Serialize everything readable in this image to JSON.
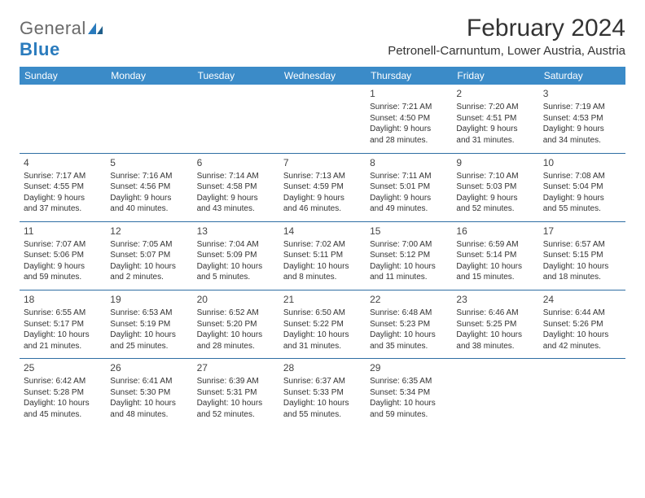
{
  "logo": {
    "word1": "General",
    "word2": "Blue"
  },
  "header": {
    "month_title": "February 2024",
    "location": "Petronell-Carnuntum, Lower Austria, Austria"
  },
  "style": {
    "header_bg": "#3b8bc8",
    "header_text": "#ffffff",
    "row_divider": "#2f6ea3",
    "body_text": "#333333",
    "logo_gray": "#6a6a6a",
    "logo_blue": "#2a7bbd",
    "page_bg": "#ffffff",
    "month_title_fontsize": 30,
    "location_fontsize": 15,
    "dayhead_fontsize": 12,
    "cell_fontsize": 10
  },
  "day_headers": [
    "Sunday",
    "Monday",
    "Tuesday",
    "Wednesday",
    "Thursday",
    "Friday",
    "Saturday"
  ],
  "weeks": [
    [
      null,
      null,
      null,
      null,
      {
        "n": "1",
        "sr": "Sunrise: 7:21 AM",
        "ss": "Sunset: 4:50 PM",
        "dl1": "Daylight: 9 hours",
        "dl2": "and 28 minutes."
      },
      {
        "n": "2",
        "sr": "Sunrise: 7:20 AM",
        "ss": "Sunset: 4:51 PM",
        "dl1": "Daylight: 9 hours",
        "dl2": "and 31 minutes."
      },
      {
        "n": "3",
        "sr": "Sunrise: 7:19 AM",
        "ss": "Sunset: 4:53 PM",
        "dl1": "Daylight: 9 hours",
        "dl2": "and 34 minutes."
      }
    ],
    [
      {
        "n": "4",
        "sr": "Sunrise: 7:17 AM",
        "ss": "Sunset: 4:55 PM",
        "dl1": "Daylight: 9 hours",
        "dl2": "and 37 minutes."
      },
      {
        "n": "5",
        "sr": "Sunrise: 7:16 AM",
        "ss": "Sunset: 4:56 PM",
        "dl1": "Daylight: 9 hours",
        "dl2": "and 40 minutes."
      },
      {
        "n": "6",
        "sr": "Sunrise: 7:14 AM",
        "ss": "Sunset: 4:58 PM",
        "dl1": "Daylight: 9 hours",
        "dl2": "and 43 minutes."
      },
      {
        "n": "7",
        "sr": "Sunrise: 7:13 AM",
        "ss": "Sunset: 4:59 PM",
        "dl1": "Daylight: 9 hours",
        "dl2": "and 46 minutes."
      },
      {
        "n": "8",
        "sr": "Sunrise: 7:11 AM",
        "ss": "Sunset: 5:01 PM",
        "dl1": "Daylight: 9 hours",
        "dl2": "and 49 minutes."
      },
      {
        "n": "9",
        "sr": "Sunrise: 7:10 AM",
        "ss": "Sunset: 5:03 PM",
        "dl1": "Daylight: 9 hours",
        "dl2": "and 52 minutes."
      },
      {
        "n": "10",
        "sr": "Sunrise: 7:08 AM",
        "ss": "Sunset: 5:04 PM",
        "dl1": "Daylight: 9 hours",
        "dl2": "and 55 minutes."
      }
    ],
    [
      {
        "n": "11",
        "sr": "Sunrise: 7:07 AM",
        "ss": "Sunset: 5:06 PM",
        "dl1": "Daylight: 9 hours",
        "dl2": "and 59 minutes."
      },
      {
        "n": "12",
        "sr": "Sunrise: 7:05 AM",
        "ss": "Sunset: 5:07 PM",
        "dl1": "Daylight: 10 hours",
        "dl2": "and 2 minutes."
      },
      {
        "n": "13",
        "sr": "Sunrise: 7:04 AM",
        "ss": "Sunset: 5:09 PM",
        "dl1": "Daylight: 10 hours",
        "dl2": "and 5 minutes."
      },
      {
        "n": "14",
        "sr": "Sunrise: 7:02 AM",
        "ss": "Sunset: 5:11 PM",
        "dl1": "Daylight: 10 hours",
        "dl2": "and 8 minutes."
      },
      {
        "n": "15",
        "sr": "Sunrise: 7:00 AM",
        "ss": "Sunset: 5:12 PM",
        "dl1": "Daylight: 10 hours",
        "dl2": "and 11 minutes."
      },
      {
        "n": "16",
        "sr": "Sunrise: 6:59 AM",
        "ss": "Sunset: 5:14 PM",
        "dl1": "Daylight: 10 hours",
        "dl2": "and 15 minutes."
      },
      {
        "n": "17",
        "sr": "Sunrise: 6:57 AM",
        "ss": "Sunset: 5:15 PM",
        "dl1": "Daylight: 10 hours",
        "dl2": "and 18 minutes."
      }
    ],
    [
      {
        "n": "18",
        "sr": "Sunrise: 6:55 AM",
        "ss": "Sunset: 5:17 PM",
        "dl1": "Daylight: 10 hours",
        "dl2": "and 21 minutes."
      },
      {
        "n": "19",
        "sr": "Sunrise: 6:53 AM",
        "ss": "Sunset: 5:19 PM",
        "dl1": "Daylight: 10 hours",
        "dl2": "and 25 minutes."
      },
      {
        "n": "20",
        "sr": "Sunrise: 6:52 AM",
        "ss": "Sunset: 5:20 PM",
        "dl1": "Daylight: 10 hours",
        "dl2": "and 28 minutes."
      },
      {
        "n": "21",
        "sr": "Sunrise: 6:50 AM",
        "ss": "Sunset: 5:22 PM",
        "dl1": "Daylight: 10 hours",
        "dl2": "and 31 minutes."
      },
      {
        "n": "22",
        "sr": "Sunrise: 6:48 AM",
        "ss": "Sunset: 5:23 PM",
        "dl1": "Daylight: 10 hours",
        "dl2": "and 35 minutes."
      },
      {
        "n": "23",
        "sr": "Sunrise: 6:46 AM",
        "ss": "Sunset: 5:25 PM",
        "dl1": "Daylight: 10 hours",
        "dl2": "and 38 minutes."
      },
      {
        "n": "24",
        "sr": "Sunrise: 6:44 AM",
        "ss": "Sunset: 5:26 PM",
        "dl1": "Daylight: 10 hours",
        "dl2": "and 42 minutes."
      }
    ],
    [
      {
        "n": "25",
        "sr": "Sunrise: 6:42 AM",
        "ss": "Sunset: 5:28 PM",
        "dl1": "Daylight: 10 hours",
        "dl2": "and 45 minutes."
      },
      {
        "n": "26",
        "sr": "Sunrise: 6:41 AM",
        "ss": "Sunset: 5:30 PM",
        "dl1": "Daylight: 10 hours",
        "dl2": "and 48 minutes."
      },
      {
        "n": "27",
        "sr": "Sunrise: 6:39 AM",
        "ss": "Sunset: 5:31 PM",
        "dl1": "Daylight: 10 hours",
        "dl2": "and 52 minutes."
      },
      {
        "n": "28",
        "sr": "Sunrise: 6:37 AM",
        "ss": "Sunset: 5:33 PM",
        "dl1": "Daylight: 10 hours",
        "dl2": "and 55 minutes."
      },
      {
        "n": "29",
        "sr": "Sunrise: 6:35 AM",
        "ss": "Sunset: 5:34 PM",
        "dl1": "Daylight: 10 hours",
        "dl2": "and 59 minutes."
      },
      null,
      null
    ]
  ]
}
